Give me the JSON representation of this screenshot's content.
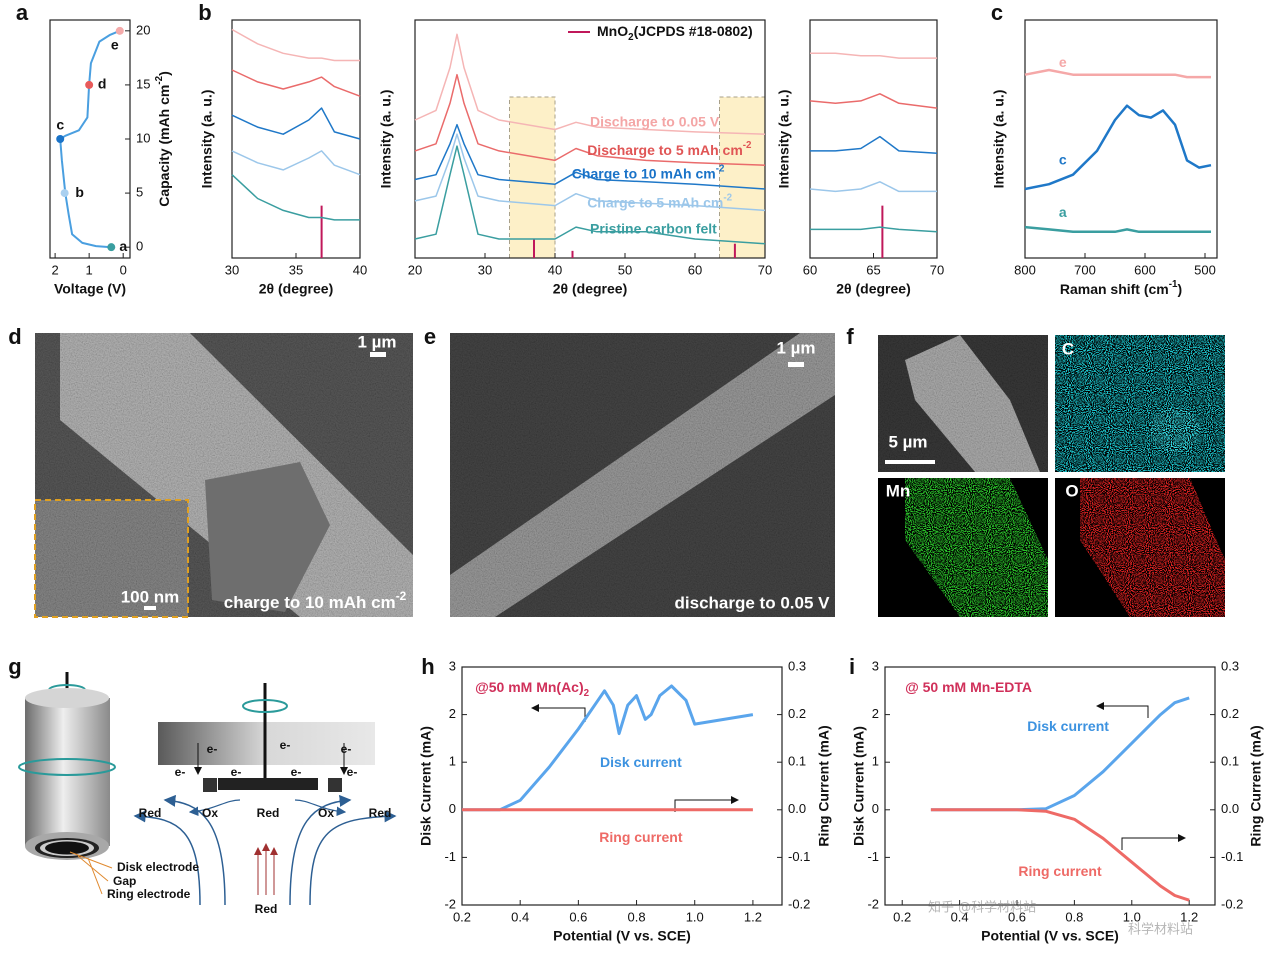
{
  "chart_data": [
    {
      "type": "line",
      "xlabel": "Voltage (V)",
      "ylabel": {
        "text": "Capacity (mAh cm",
        "sup": "-2",
        "end": ")"
      },
      "xlim": [
        2.15,
        -0.2
      ],
      "xticks": [
        2,
        1,
        0
      ],
      "ylim": [
        -1,
        21
      ],
      "yticks": [
        0,
        5,
        10,
        15,
        20
      ],
      "yaxis_side": "right",
      "series": [
        {
          "color": "#4a9fe0",
          "x": [
            0.35,
            0.8,
            1.2,
            1.5,
            1.6,
            1.7,
            1.8,
            1.85,
            1.7,
            1.3,
            1.05,
            1.0,
            0.95,
            0.7,
            0.4,
            0.1
          ],
          "values": [
            0,
            0.1,
            0.4,
            1.2,
            3,
            5,
            8,
            10,
            10.3,
            10.8,
            12,
            15,
            17,
            19,
            19.6,
            20
          ]
        }
      ],
      "points": {
        "labels": [
          "a",
          "b",
          "c",
          "d",
          "e"
        ],
        "x": [
          0.35,
          1.72,
          1.85,
          1.0,
          0.1
        ],
        "values": [
          0,
          5,
          10,
          15,
          20
        ],
        "colors": [
          "#3a9ea0",
          "#a9d0f0",
          "#1a73c8",
          "#e85a5a",
          "#f4aaaa"
        ]
      }
    },
    {
      "type": "line",
      "xlabel": "2θ (degree)",
      "ylabel": "Intensity (a. u.)",
      "xlim": [
        30,
        40
      ],
      "xticks": [
        30,
        35,
        40
      ],
      "ylim": [
        0,
        100
      ],
      "series": [
        {
          "color": "#f5b5b5",
          "x": [
            30,
            32,
            34,
            36,
            37,
            38,
            40
          ],
          "values": [
            96,
            90,
            86,
            84,
            84,
            83,
            83
          ]
        },
        {
          "color": "#ea6b6b",
          "x": [
            30,
            32,
            34,
            36,
            37,
            38,
            40
          ],
          "values": [
            79,
            74,
            71,
            74,
            76,
            72,
            68
          ]
        },
        {
          "color": "#1f78c8",
          "x": [
            30,
            32,
            34,
            36,
            37,
            38,
            40
          ],
          "values": [
            60,
            55,
            52,
            58,
            63,
            53,
            50
          ]
        },
        {
          "color": "#9cc7ea",
          "x": [
            30,
            32,
            34,
            36,
            37,
            38,
            40
          ],
          "values": [
            45,
            40,
            37,
            42,
            45,
            39,
            35
          ]
        },
        {
          "color": "#3a9ea0",
          "x": [
            30,
            32,
            34,
            36,
            37,
            38,
            40
          ],
          "values": [
            35,
            25,
            20,
            17,
            17,
            16,
            16
          ]
        }
      ],
      "reference": {
        "color": "#c0185a",
        "x": [
          37
        ],
        "values": [
          22
        ]
      }
    },
    {
      "type": "line",
      "xlabel": "2θ (degree)",
      "ylabel": "Intensity (a. u.)",
      "xlim": [
        20,
        70
      ],
      "xticks": [
        20,
        30,
        40,
        50,
        60,
        70
      ],
      "ylim": [
        0,
        100
      ],
      "highlight_x": [
        [
          33.5,
          40
        ],
        [
          63.5,
          70
        ]
      ],
      "series": [
        {
          "color": "#f5b5b5",
          "x": [
            20,
            23,
            25,
            26,
            27,
            29,
            32,
            40,
            43,
            46,
            53,
            60,
            70
          ],
          "values": [
            58,
            62,
            80,
            94,
            80,
            62,
            58,
            54,
            57,
            55,
            54,
            53,
            52
          ]
        },
        {
          "color": "#ea6b6b",
          "x": [
            20,
            23,
            25,
            26,
            27,
            29,
            32,
            40,
            43,
            46,
            53,
            60,
            70
          ],
          "values": [
            45,
            48,
            65,
            77,
            65,
            48,
            45,
            41,
            46,
            43,
            41,
            40,
            39
          ]
        },
        {
          "color": "#1f78c8",
          "x": [
            20,
            23,
            25,
            26,
            27,
            29,
            32,
            40,
            43,
            46,
            53,
            60,
            70
          ],
          "values": [
            33,
            35,
            48,
            56,
            48,
            35,
            33,
            31,
            36,
            33,
            32,
            31,
            29
          ]
        },
        {
          "color": "#9cc7ea",
          "x": [
            20,
            23,
            25,
            26,
            27,
            29,
            32,
            40,
            43,
            46,
            53,
            60,
            70
          ],
          "values": [
            24,
            26,
            42,
            52,
            42,
            26,
            24,
            22,
            27,
            24,
            23,
            22,
            20
          ]
        },
        {
          "color": "#3a9ea0",
          "x": [
            20,
            23,
            25,
            26,
            27,
            29,
            32,
            40,
            43,
            46,
            53,
            60,
            70
          ],
          "values": [
            8,
            10,
            35,
            47,
            35,
            10,
            8,
            8,
            13,
            11,
            11,
            8,
            6
          ]
        }
      ],
      "reference": {
        "name": {
          "text": "MnO",
          "sub": "2",
          "end": "(JCPDS #18-0802)"
        },
        "color": "#c0185a",
        "x": [
          37,
          42.5,
          65.7
        ],
        "values": [
          8,
          3,
          6
        ]
      },
      "annotations": [
        {
          "text": "Discharge to 0.05 V",
          "color": "#f4a6a6"
        },
        {
          "text": "Discharge to 5 mAh cm",
          "sup": "-2",
          "color": "#e05555"
        },
        {
          "text": "Charge to 10 mAh cm",
          "sup": "-2",
          "color": "#1a73c8"
        },
        {
          "text": "Charge to 5 mAh cm",
          "sup": "-2",
          "color": "#9cc7ea"
        },
        {
          "text": "Pristine carbon felt",
          "color": "#3a9ea0"
        }
      ]
    },
    {
      "type": "line",
      "xlabel": "2θ (degree)",
      "ylabel": "Intensity (a. u.)",
      "xlim": [
        60,
        70
      ],
      "xticks": [
        60,
        65,
        70
      ],
      "ylim": [
        0,
        100
      ],
      "series": [
        {
          "color": "#f5b5b5",
          "x": [
            60,
            62,
            64,
            65.5,
            67,
            70
          ],
          "values": [
            86,
            86,
            85,
            85,
            84,
            84
          ]
        },
        {
          "color": "#ea6b6b",
          "x": [
            60,
            62,
            64,
            65.5,
            67,
            70
          ],
          "values": [
            66,
            65,
            66,
            69,
            65,
            63
          ]
        },
        {
          "color": "#1f78c8",
          "x": [
            60,
            62,
            64,
            65.5,
            67,
            70
          ],
          "values": [
            45,
            45,
            46,
            51,
            45,
            44
          ]
        },
        {
          "color": "#9cc7ea",
          "x": [
            60,
            62,
            64,
            65.5,
            67,
            70
          ],
          "values": [
            29,
            28,
            29,
            32,
            28,
            28
          ]
        },
        {
          "color": "#3a9ea0",
          "x": [
            60,
            62,
            64,
            65.5,
            67,
            70
          ],
          "values": [
            12,
            12,
            12,
            13,
            12,
            11
          ]
        }
      ],
      "reference": {
        "color": "#c0185a",
        "x": [
          65.7
        ],
        "values": [
          22
        ]
      }
    },
    {
      "type": "line",
      "xlabel": {
        "text": "Raman shift (cm",
        "sup": "-1",
        "end": ")"
      },
      "ylabel": "Intensity (a. u.)",
      "xlim": [
        800,
        480
      ],
      "xticks": [
        800,
        700,
        600,
        500
      ],
      "ylim": [
        0,
        100
      ],
      "series": [
        {
          "color": "#f5a8a8",
          "x": [
            800,
            760,
            720,
            680,
            650,
            630,
            610,
            590,
            570,
            550,
            530,
            510,
            490
          ],
          "values": [
            77,
            79,
            77,
            77,
            77,
            77,
            77,
            77,
            77,
            77,
            76,
            76,
            76
          ]
        },
        {
          "color": "#1f78c8",
          "x": [
            800,
            760,
            720,
            680,
            650,
            630,
            610,
            590,
            570,
            550,
            530,
            510,
            490
          ],
          "values": [
            29,
            31,
            35,
            45,
            58,
            64,
            60,
            59,
            62,
            56,
            41,
            38,
            39
          ]
        },
        {
          "color": "#3a9ea0",
          "x": [
            800,
            760,
            720,
            680,
            650,
            630,
            610,
            590,
            570,
            550,
            530,
            510,
            490
          ],
          "values": [
            13,
            12,
            11,
            11,
            11,
            12,
            11,
            11,
            11,
            11,
            11,
            11,
            11
          ]
        }
      ],
      "annotations": [
        {
          "text": "e",
          "color": "#f5a8a8"
        },
        {
          "text": "c",
          "color": "#1f78c8"
        },
        {
          "text": "a",
          "color": "#3a9ea0"
        }
      ]
    },
    {
      "type": "line",
      "xlabel": "Potential (V vs. SCE)",
      "ylabel": "Disk Current (mA)",
      "y2label": "Ring Current (mA)",
      "xlim": [
        0.2,
        1.3
      ],
      "xticks": [
        0.2,
        0.4,
        0.6,
        0.8,
        {
          "value": 1.0,
          "label": "1.0"
        },
        1.2
      ],
      "ylim": [
        -2,
        3
      ],
      "yticks": [
        -2,
        -1,
        0,
        1,
        2,
        3
      ],
      "y2lim": [
        -0.2,
        0.3
      ],
      "y2ticks": [
        -0.2,
        -0.1,
        {
          "value": 0,
          "label": "0.0"
        },
        0.1,
        0.2,
        0.3
      ],
      "series": [
        {
          "color": "#5aa5ec",
          "x": [
            0.2,
            0.33,
            0.4,
            0.5,
            0.6,
            0.69,
            0.72,
            0.74,
            0.77,
            0.8,
            0.83,
            0.85,
            0.88,
            0.92,
            0.97,
            1.0,
            1.1,
            1.2
          ],
          "values": [
            0,
            0,
            0.2,
            0.9,
            1.7,
            2.5,
            2.2,
            1.6,
            2.2,
            2.4,
            1.9,
            2.0,
            2.4,
            2.6,
            2.3,
            1.8,
            1.9,
            2.0
          ]
        },
        {
          "color": "#ee6a66",
          "axis": "y2",
          "x": [
            0.2,
            1.2
          ],
          "values": [
            0,
            0
          ]
        }
      ],
      "annotations": [
        {
          "text": "@50 mM Mn(Ac)",
          "sub": "2",
          "color": "#d0305a"
        },
        {
          "text": "Disk current",
          "color": "#3c92e0"
        },
        {
          "text": "Ring current",
          "color": "#ee6a66"
        }
      ]
    },
    {
      "type": "line",
      "xlabel": "Potential (V vs. SCE)",
      "ylabel": "Disk Current (mA)",
      "y2label": "Ring Current (mA)",
      "xlim": [
        0.14,
        1.29
      ],
      "xticks": [
        0.2,
        0.4,
        0.6,
        0.8,
        {
          "value": 1.0,
          "label": "1.0"
        },
        1.2
      ],
      "ylim": [
        -2,
        3
      ],
      "yticks": [
        -2,
        -1,
        0,
        1,
        2,
        3
      ],
      "y2lim": [
        -0.2,
        0.3
      ],
      "y2ticks": [
        -0.2,
        -0.1,
        {
          "value": 0,
          "label": "0.0"
        },
        0.1,
        0.2,
        0.3
      ],
      "series": [
        {
          "color": "#5aa5ec",
          "x": [
            0.3,
            0.6,
            0.7,
            0.8,
            0.9,
            1.0,
            1.1,
            1.15,
            1.2
          ],
          "values": [
            0,
            0,
            0.02,
            0.3,
            0.8,
            1.4,
            2.0,
            2.25,
            2.35
          ]
        },
        {
          "color": "#ee6a66",
          "axis": "y2",
          "x": [
            0.3,
            0.6,
            0.7,
            0.8,
            0.9,
            1.0,
            1.1,
            1.15,
            1.2
          ],
          "values": [
            0,
            0,
            -0.003,
            -0.02,
            -0.06,
            -0.11,
            -0.16,
            -0.18,
            -0.19
          ]
        }
      ],
      "annotations": [
        {
          "text": "@ 50 mM Mn-EDTA",
          "color": "#d0305a"
        },
        {
          "text": "Disk current",
          "color": "#3c92e0"
        },
        {
          "text": "Ring current",
          "color": "#ee6a66"
        }
      ]
    }
  ],
  "figure": {
    "panel_labels": [
      "a",
      "b",
      "c",
      "d",
      "e",
      "f",
      "g",
      "h",
      "i"
    ],
    "panel_d": {
      "scale_bar": "1 µm",
      "inset_scale_bar": "100 nm",
      "caption": {
        "text": "charge to 10 mAh cm",
        "sup": "-2"
      }
    },
    "panel_e": {
      "scale_bar": "1 µm",
      "caption": "discharge to 0.05 V"
    },
    "panel_f": {
      "scale_bar": "5 µm",
      "maps": [
        "C",
        "Mn",
        "O"
      ]
    },
    "panel_g": {
      "electrode_labels": [
        "Disk electrode",
        "Gap",
        "Ring electrode"
      ],
      "electrons": [
        "e-",
        "e-",
        "e-",
        "e-",
        "e-",
        "e-",
        "e-"
      ],
      "species": [
        "Red",
        "Ox",
        "Red",
        "Ox",
        "Red",
        "Red"
      ]
    },
    "watermark": [
      "知乎 @科学材料站",
      "科学材料站"
    ]
  }
}
